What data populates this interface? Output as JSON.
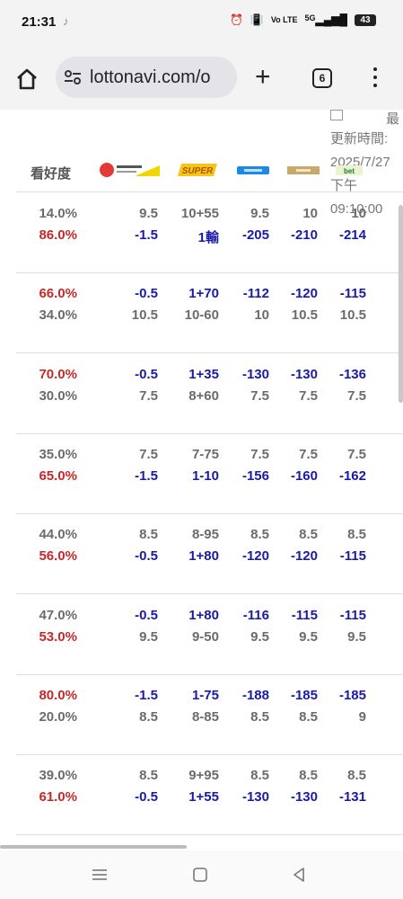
{
  "status": {
    "time": "21:31",
    "tiktok": "♪",
    "volte": "Vo LTE",
    "signal": "5G",
    "battery": "43"
  },
  "browser": {
    "url": "lottonavi.com/o",
    "tab_count": "6"
  },
  "sidenote": {
    "cut": "最",
    "label": "更新時間:",
    "date": "2025/7/27",
    "ampm": "下午",
    "clock": "09:10:00"
  },
  "header": {
    "label": "看好度",
    "logos": [
      "sports-lottery-logo",
      "super-logo",
      "bookmaker-3-logo",
      "bookmaker-4-logo",
      "bet365-logo"
    ],
    "logo5_text": "bet"
  },
  "rows": [
    {
      "top": {
        "pct": "14.0%",
        "pct_color": "gray",
        "vals": [
          "9.5",
          "10+55",
          "9.5",
          "10",
          "10"
        ],
        "val_color": "gray"
      },
      "bottom": {
        "pct": "86.0%",
        "pct_color": "red",
        "vals": [
          "-1.5",
          "1輸",
          "-205",
          "-210",
          "-214"
        ],
        "val_color": "blue"
      }
    },
    {
      "top": {
        "pct": "66.0%",
        "pct_color": "red",
        "vals": [
          "-0.5",
          "1+70",
          "-112",
          "-120",
          "-115"
        ],
        "val_color": "blue"
      },
      "bottom": {
        "pct": "34.0%",
        "pct_color": "gray",
        "vals": [
          "10.5",
          "10-60",
          "10",
          "10.5",
          "10.5"
        ],
        "val_color": "gray"
      }
    },
    {
      "top": {
        "pct": "70.0%",
        "pct_color": "red",
        "vals": [
          "-0.5",
          "1+35",
          "-130",
          "-130",
          "-136"
        ],
        "val_color": "blue"
      },
      "bottom": {
        "pct": "30.0%",
        "pct_color": "gray",
        "vals": [
          "7.5",
          "8+60",
          "7.5",
          "7.5",
          "7.5"
        ],
        "val_color": "gray"
      }
    },
    {
      "top": {
        "pct": "35.0%",
        "pct_color": "gray",
        "vals": [
          "7.5",
          "7-75",
          "7.5",
          "7.5",
          "7.5"
        ],
        "val_color": "gray"
      },
      "bottom": {
        "pct": "65.0%",
        "pct_color": "red",
        "vals": [
          "-1.5",
          "1-10",
          "-156",
          "-160",
          "-162"
        ],
        "val_color": "blue"
      }
    },
    {
      "top": {
        "pct": "44.0%",
        "pct_color": "gray",
        "vals": [
          "8.5",
          "8-95",
          "8.5",
          "8.5",
          "8.5"
        ],
        "val_color": "gray"
      },
      "bottom": {
        "pct": "56.0%",
        "pct_color": "red",
        "vals": [
          "-0.5",
          "1+80",
          "-120",
          "-120",
          "-115"
        ],
        "val_color": "blue"
      }
    },
    {
      "top": {
        "pct": "47.0%",
        "pct_color": "gray",
        "vals": [
          "-0.5",
          "1+80",
          "-116",
          "-115",
          "-115"
        ],
        "val_color": "blue"
      },
      "bottom": {
        "pct": "53.0%",
        "pct_color": "red",
        "vals": [
          "9.5",
          "9-50",
          "9.5",
          "9.5",
          "9.5"
        ],
        "val_color": "gray"
      }
    },
    {
      "top": {
        "pct": "80.0%",
        "pct_color": "red",
        "vals": [
          "-1.5",
          "1-75",
          "-188",
          "-185",
          "-185"
        ],
        "val_color": "blue"
      },
      "bottom": {
        "pct": "20.0%",
        "pct_color": "gray",
        "vals": [
          "8.5",
          "8-85",
          "8.5",
          "8.5",
          "9"
        ],
        "val_color": "gray"
      }
    },
    {
      "top": {
        "pct": "39.0%",
        "pct_color": "gray",
        "vals": [
          "8.5",
          "9+95",
          "8.5",
          "8.5",
          "8.5"
        ],
        "val_color": "gray"
      },
      "bottom": {
        "pct": "61.0%",
        "pct_color": "red",
        "vals": [
          "-0.5",
          "1+55",
          "-130",
          "-130",
          "-131"
        ],
        "val_color": "blue"
      }
    }
  ],
  "navbar": {
    "icons": [
      "recent-apps-icon",
      "home-button-icon",
      "back-icon"
    ]
  }
}
